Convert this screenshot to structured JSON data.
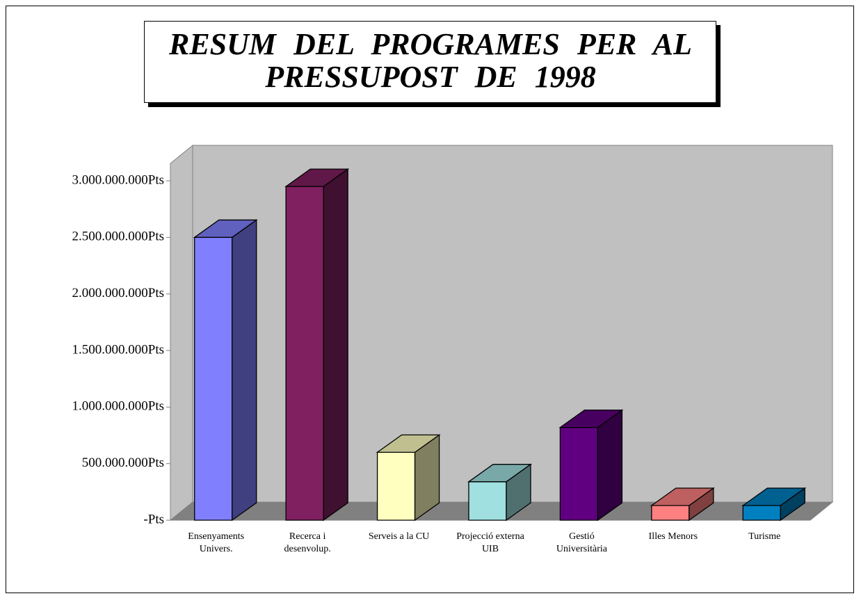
{
  "chart_data": {
    "type": "bar3d",
    "title": "RESUM DEL PROGRAMES PER AL PRESSUPOST DE 1998",
    "categories": [
      "Ensenyaments Univers.",
      "Recerca i desenvolup.",
      "Serveis a la CU",
      "Projecció externa UIB",
      "Gestió Universitària",
      "Illes Menors",
      "Turisme"
    ],
    "values": [
      2500000000,
      2950000000,
      600000000,
      340000000,
      820000000,
      130000000,
      130000000
    ],
    "colors": [
      "#8080ff",
      "#802060",
      "#ffffc0",
      "#a0e0e0",
      "#600080",
      "#ff8080",
      "#0080c0"
    ],
    "ylim": [
      0,
      3000000000
    ],
    "yticks": [
      {
        "value": 0,
        "label": "-Pts"
      },
      {
        "value": 500000000,
        "label": "500.000.000Pts"
      },
      {
        "value": 1000000000,
        "label": "1.000.000.000Pts"
      },
      {
        "value": 1500000000,
        "label": "1.500.000.000Pts"
      },
      {
        "value": 2000000000,
        "label": "2.000.000.000Pts"
      },
      {
        "value": 2500000000,
        "label": "2.500.000.000Pts"
      },
      {
        "value": 3000000000,
        "label": "3.000.000.000Pts"
      }
    ]
  }
}
